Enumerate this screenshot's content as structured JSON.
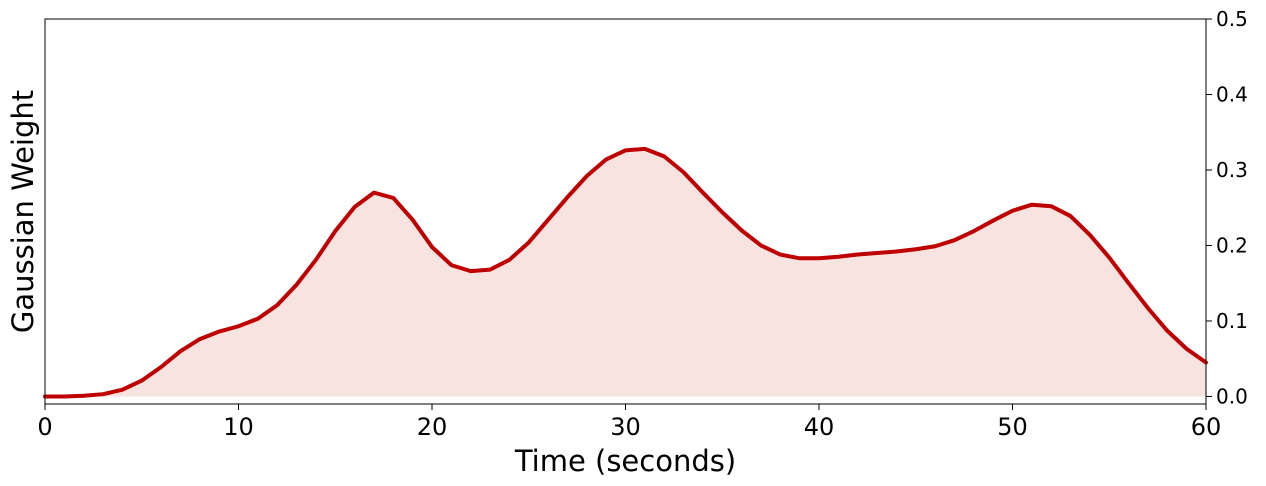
{
  "chart_data": {
    "type": "area",
    "xlabel": "Time (seconds)",
    "ylabel": "Gaussian Weight",
    "xlim": [
      0,
      60
    ],
    "ylim": [
      -0.01,
      0.5
    ],
    "x_ticks": [
      0,
      10,
      20,
      30,
      40,
      50,
      60
    ],
    "x_tick_labels": [
      "0",
      "10",
      "20",
      "30",
      "40",
      "50",
      "60"
    ],
    "y_ticks": [
      0.0,
      0.1,
      0.2,
      0.3,
      0.4,
      0.5
    ],
    "y_tick_labels": [
      "0.0",
      "0.1",
      "0.2",
      "0.3",
      "0.4",
      "0.5"
    ],
    "y_axis_side": "right",
    "grid": false,
    "line_color": "#c00000",
    "fill_color": "#f7e4e0",
    "series": [
      {
        "x": [
          0,
          1,
          2,
          3,
          4,
          5,
          6,
          7,
          8,
          9,
          10,
          11,
          12,
          13,
          14,
          15,
          16,
          17,
          18,
          19,
          20,
          21,
          22,
          23,
          24,
          25,
          26,
          27,
          28,
          29,
          30,
          31,
          32,
          33,
          34,
          35,
          36,
          37,
          38,
          39,
          40,
          41,
          42,
          43,
          44,
          45,
          46,
          47,
          48,
          49,
          50,
          51,
          52,
          53,
          54,
          55,
          56,
          57,
          58,
          59,
          60
        ],
        "y": [
          0.0,
          0.0,
          0.001,
          0.003,
          0.009,
          0.021,
          0.039,
          0.06,
          0.076,
          0.086,
          0.093,
          0.103,
          0.121,
          0.148,
          0.181,
          0.219,
          0.251,
          0.27,
          0.263,
          0.234,
          0.198,
          0.174,
          0.166,
          0.168,
          0.181,
          0.204,
          0.234,
          0.264,
          0.292,
          0.314,
          0.326,
          0.328,
          0.318,
          0.297,
          0.27,
          0.244,
          0.22,
          0.2,
          0.188,
          0.183,
          0.183,
          0.185,
          0.188,
          0.19,
          0.192,
          0.195,
          0.199,
          0.207,
          0.219,
          0.233,
          0.246,
          0.254,
          0.252,
          0.239,
          0.214,
          0.184,
          0.15,
          0.117,
          0.087,
          0.063,
          0.045
        ]
      }
    ]
  }
}
